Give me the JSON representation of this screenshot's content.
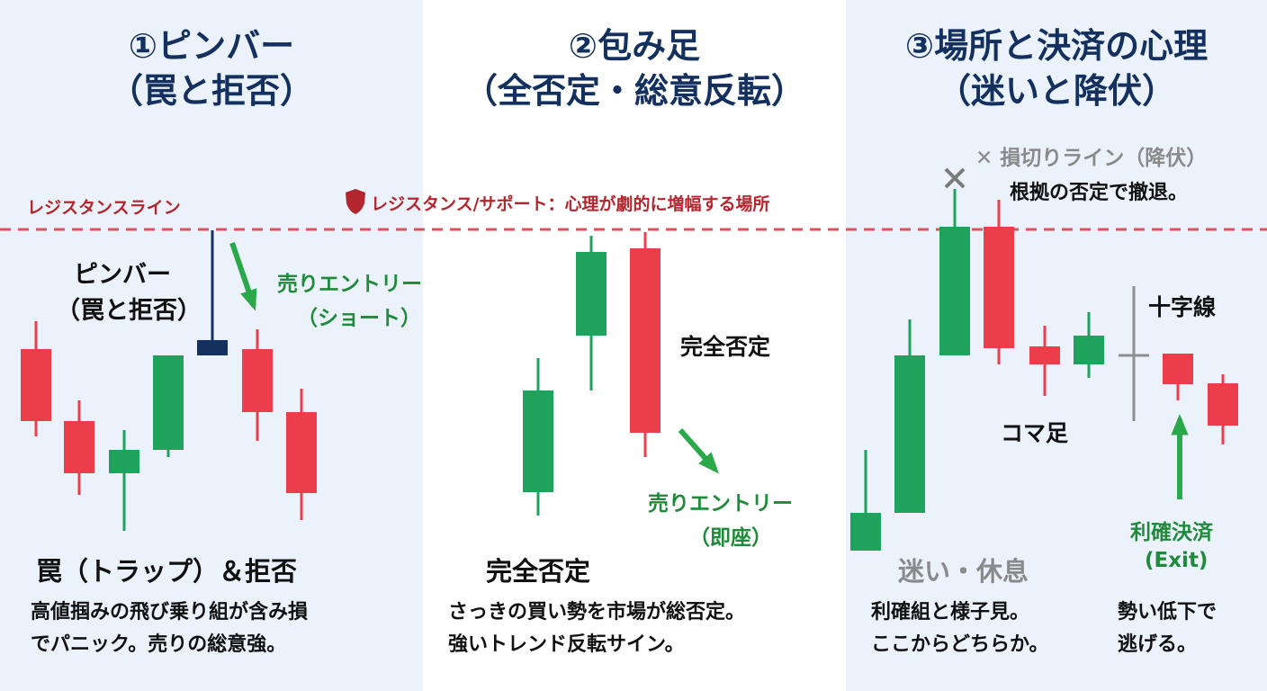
{
  "colors": {
    "bull": "#1fa35c",
    "bear": "#ea3e4b",
    "pin": "#13305f",
    "doji": "#8f8f8f",
    "resistance": "#e0525a",
    "arrow": "#2aa84a",
    "title": "#13305f"
  },
  "panel1": {
    "title": "①ピンバー",
    "subtitle": "（罠と拒否）",
    "pin_label_1": "ピンバー",
    "pin_label_2": "（罠と拒否）",
    "entry_1": "売りエントリー",
    "entry_2": "（ショート）",
    "heading": "罠（トラップ）＆拒否",
    "desc_1": "高値掴みの飛び乗り組が含み損",
    "desc_2": "でパニック。売りの総意強。",
    "resistance_label": "レジスタンスライン"
  },
  "panel2": {
    "title": "②包み足",
    "subtitle": "（全否定・総意反転）",
    "banner": "レジスタンス/サポート：心理が劇的に増幅する場所",
    "banner_icon": "shield-icon",
    "candle_label": "完全否定",
    "entry_1": "売りエントリー",
    "entry_2": "（即座）",
    "heading": "完全否定",
    "desc_1": "さっきの買い勢を市場が総否定。",
    "desc_2": "強いトレンド反転サイン。"
  },
  "panel3": {
    "title": "③場所と決済の心理",
    "subtitle": "（迷いと降伏）",
    "stop_label": "✕ 損切りライン（降伏）",
    "stop_desc": "根拠の否定で撤退。",
    "doji_label": "十字線",
    "spinning_label": "コマ足",
    "exit_1": "利確決済",
    "exit_2": "(Exit)",
    "heading": "迷い・休息",
    "desc_1": "利確組と様子見。",
    "desc_2": "ここからどちらか。",
    "exit_desc_1": "勢い低下で",
    "exit_desc_2": "逃げる。"
  }
}
